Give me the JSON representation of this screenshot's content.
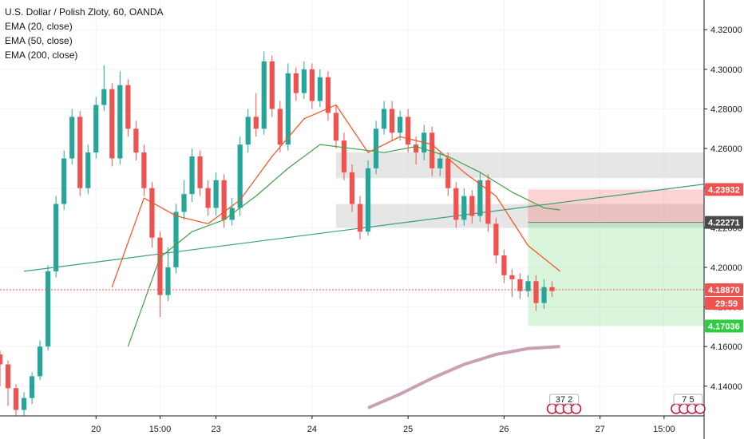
{
  "legend": {
    "title": "U.S. Dollar / Polish Zloty, 60, OANDA",
    "indicators": [
      "EMA (20, close)",
      "EMA (50, close)",
      "EMA (200, close)"
    ]
  },
  "colors": {
    "up": "#26a69a",
    "down": "#ef5350",
    "ema20": "#f4511e",
    "ema50": "#43a047",
    "ema200": "#c9a0b4",
    "trendline": "#3a9f80",
    "last_price": "#ef5350",
    "zone": "#d9d9d9",
    "target": "#2ecc40",
    "stop": "#ef5350"
  },
  "tags": {
    "resistance": "4.23932",
    "entry": "4.22271",
    "last": "4.18870",
    "countdown": "29:59",
    "target": "4.17036"
  },
  "events": {
    "first": "37 2",
    "second": "7 5"
  },
  "chart_data": {
    "type": "candlestick",
    "title": "U.S. Dollar / Polish Zloty, 60, OANDA",
    "y_range": [
      4.125,
      4.335
    ],
    "y_ticks": [
      "4.32000",
      "4.30000",
      "4.28000",
      "4.26000",
      "4.24000",
      "4.22000",
      "4.20000",
      "4.18000",
      "4.16000",
      "4.14000"
    ],
    "y_tick_values": [
      4.32,
      4.3,
      4.28,
      4.26,
      4.24,
      4.22,
      4.2,
      4.18,
      4.16,
      4.14
    ],
    "x_ticks": [
      "20",
      "15:00",
      "23",
      "24",
      "25",
      "26",
      "27",
      "15:00"
    ],
    "x_tick_index": [
      12,
      20,
      27,
      39,
      51,
      63,
      75,
      83
    ],
    "x_range_index": [
      0,
      88
    ],
    "candles": [
      [
        4.156,
        4.151,
        4.158,
        4.14
      ],
      [
        4.151,
        4.139,
        4.153,
        4.13
      ],
      [
        4.139,
        4.128,
        4.141,
        4.122
      ],
      [
        4.128,
        4.134,
        4.137,
        4.124
      ],
      [
        4.134,
        4.145,
        4.147,
        4.131
      ],
      [
        4.145,
        4.16,
        4.163,
        4.143
      ],
      [
        4.16,
        4.198,
        4.201,
        4.158
      ],
      [
        4.198,
        4.232,
        4.236,
        4.195
      ],
      [
        4.232,
        4.255,
        4.259,
        4.229
      ],
      [
        4.255,
        4.276,
        4.28,
        4.252
      ],
      [
        4.276,
        4.24,
        4.279,
        4.236
      ],
      [
        4.24,
        4.258,
        4.262,
        4.237
      ],
      [
        4.258,
        4.282,
        4.286,
        4.255
      ],
      [
        4.282,
        4.29,
        4.302,
        4.279
      ],
      [
        4.29,
        4.255,
        4.293,
        4.251
      ],
      [
        4.255,
        4.292,
        4.299,
        4.252
      ],
      [
        4.292,
        4.27,
        4.295,
        4.266
      ],
      [
        4.27,
        4.258,
        4.274,
        4.254
      ],
      [
        4.258,
        4.24,
        4.262,
        4.236
      ],
      [
        4.24,
        4.215,
        4.243,
        4.21
      ],
      [
        4.215,
        4.186,
        4.218,
        4.175
      ],
      [
        4.186,
        4.2,
        4.21,
        4.183
      ],
      [
        4.2,
        4.228,
        4.232,
        4.197
      ],
      [
        4.228,
        4.237,
        4.244,
        4.224
      ],
      [
        4.237,
        4.256,
        4.26,
        4.233
      ],
      [
        4.256,
        4.24,
        4.259,
        4.236
      ],
      [
        4.24,
        4.23,
        4.244,
        4.226
      ],
      [
        4.23,
        4.244,
        4.248,
        4.226
      ],
      [
        4.244,
        4.224,
        4.247,
        4.22
      ],
      [
        4.224,
        4.23,
        4.235,
        4.221
      ],
      [
        4.23,
        4.262,
        4.266,
        4.226
      ],
      [
        4.262,
        4.276,
        4.28,
        4.258
      ],
      [
        4.276,
        4.27,
        4.288,
        4.266
      ],
      [
        4.27,
        4.304,
        4.309,
        4.267
      ],
      [
        4.304,
        4.28,
        4.307,
        4.276
      ],
      [
        4.28,
        4.262,
        4.284,
        4.258
      ],
      [
        4.262,
        4.298,
        4.303,
        4.259
      ],
      [
        4.298,
        4.288,
        4.301,
        4.284
      ],
      [
        4.288,
        4.3,
        4.304,
        4.285
      ],
      [
        4.3,
        4.284,
        4.303,
        4.28
      ],
      [
        4.284,
        4.296,
        4.3,
        4.281
      ],
      [
        4.296,
        4.278,
        4.299,
        4.274
      ],
      [
        4.278,
        4.264,
        4.282,
        4.26
      ],
      [
        4.264,
        4.248,
        4.268,
        4.244
      ],
      [
        4.248,
        4.232,
        4.252,
        4.228
      ],
      [
        4.232,
        4.218,
        4.236,
        4.214
      ],
      [
        4.218,
        4.25,
        4.254,
        4.216
      ],
      [
        4.25,
        4.27,
        4.274,
        4.247
      ],
      [
        4.27,
        4.28,
        4.284,
        4.267
      ],
      [
        4.28,
        4.268,
        4.284,
        4.264
      ],
      [
        4.268,
        4.276,
        4.279,
        4.264
      ],
      [
        4.276,
        4.262,
        4.28,
        4.258
      ],
      [
        4.262,
        4.258,
        4.266,
        4.252
      ],
      [
        4.258,
        4.268,
        4.272,
        4.254
      ],
      [
        4.268,
        4.25,
        4.271,
        4.246
      ],
      [
        4.25,
        4.255,
        4.258,
        4.246
      ],
      [
        4.255,
        4.24,
        4.258,
        4.236
      ],
      [
        4.24,
        4.224,
        4.243,
        4.22
      ],
      [
        4.224,
        4.236,
        4.24,
        4.221
      ],
      [
        4.236,
        4.226,
        4.239,
        4.222
      ],
      [
        4.226,
        4.244,
        4.248,
        4.223
      ],
      [
        4.244,
        4.222,
        4.247,
        4.218
      ],
      [
        4.222,
        4.206,
        4.225,
        4.202
      ],
      [
        4.206,
        4.196,
        4.209,
        4.192
      ],
      [
        4.196,
        4.194,
        4.199,
        4.185
      ],
      [
        4.194,
        4.188,
        4.197,
        4.184
      ],
      [
        4.188,
        4.193,
        4.196,
        4.185
      ],
      [
        4.193,
        4.182,
        4.196,
        4.178
      ],
      [
        4.182,
        4.19,
        4.194,
        4.179
      ],
      [
        4.19,
        4.188,
        4.193,
        4.185
      ]
    ],
    "candle_index_start": 0,
    "ema20": [
      [
        14,
        4.19
      ],
      [
        18,
        4.235
      ],
      [
        22,
        4.226
      ],
      [
        26,
        4.222
      ],
      [
        30,
        4.234
      ],
      [
        34,
        4.256
      ],
      [
        38,
        4.275
      ],
      [
        42,
        4.282
      ],
      [
        46,
        4.258
      ],
      [
        50,
        4.266
      ],
      [
        54,
        4.262
      ],
      [
        58,
        4.248
      ],
      [
        62,
        4.236
      ],
      [
        66,
        4.211
      ],
      [
        70,
        4.198
      ]
    ],
    "ema50": [
      [
        16,
        4.16
      ],
      [
        20,
        4.205
      ],
      [
        24,
        4.218
      ],
      [
        28,
        4.224
      ],
      [
        32,
        4.236
      ],
      [
        36,
        4.25
      ],
      [
        40,
        4.262
      ],
      [
        44,
        4.26
      ],
      [
        48,
        4.258
      ],
      [
        52,
        4.261
      ],
      [
        56,
        4.256
      ],
      [
        60,
        4.248
      ],
      [
        64,
        4.238
      ],
      [
        68,
        4.23
      ],
      [
        70,
        4.229
      ]
    ],
    "ema200": [
      [
        46,
        4.129
      ],
      [
        50,
        4.136
      ],
      [
        54,
        4.144
      ],
      [
        58,
        4.151
      ],
      [
        62,
        4.156
      ],
      [
        66,
        4.159
      ],
      [
        70,
        4.16
      ]
    ],
    "trendline": [
      [
        3,
        4.198
      ],
      [
        88,
        4.242
      ]
    ],
    "zones": [
      {
        "from": 42,
        "to": 88,
        "low": 4.245,
        "high": 4.258
      },
      {
        "from": 42,
        "to": 88,
        "low": 4.22,
        "high": 4.232
      }
    ],
    "position": {
      "from": 66,
      "to": 88,
      "entry": 4.22271,
      "stop": 4.23932,
      "target": 4.17036
    },
    "last_price": 4.1887
  }
}
